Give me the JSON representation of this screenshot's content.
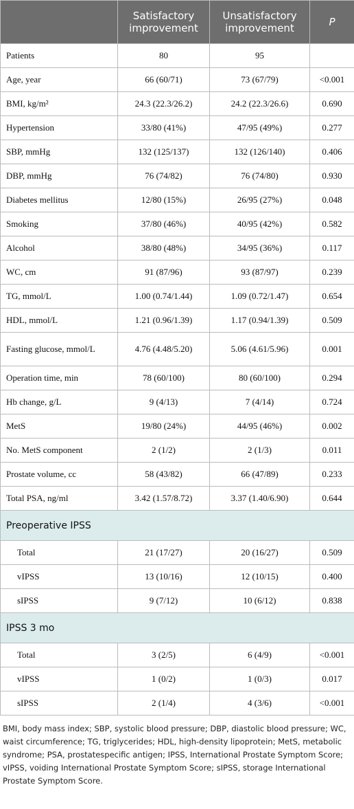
{
  "table": {
    "header": [
      "Satisfactory improvement",
      "Unsatisfactory improvement",
      "P"
    ],
    "rows": [
      [
        "Patients",
        "80",
        "95",
        ""
      ],
      [
        "Age, year",
        "66 (60/71)",
        "73 (67/79)",
        "<0.001"
      ],
      [
        "BMI, kg/m²",
        "24.3 (22.3/26.2)",
        "24.2 (22.3/26.6)",
        "0.690"
      ],
      [
        "Hypertension",
        "33/80 (41%)",
        "47/95 (49%)",
        "0.277"
      ],
      [
        "SBP, mmHg",
        "132 (125/137)",
        "132 (126/140)",
        "0.406"
      ],
      [
        "DBP, mmHg",
        "76 (74/82)",
        "76 (74/80)",
        "0.930"
      ],
      [
        "Diabetes mellitus",
        "12/80 (15%)",
        "26/95 (27%)",
        "0.048"
      ],
      [
        "Smoking",
        "37/80 (46%)",
        "40/95 (42%)",
        "0.582"
      ],
      [
        "Alcohol",
        "38/80 (48%)",
        "34/95 (36%)",
        "0.117"
      ],
      [
        "WC, cm",
        "91 (87/96)",
        "93 (87/97)",
        "0.239"
      ],
      [
        "TG, mmol/L",
        "1.00 (0.74/1.44)",
        "1.09 (0.72/1.47)",
        "0.654"
      ],
      [
        "HDL, mmol/L",
        "1.21 (0.96/1.39)",
        "1.17 (0.94/1.39)",
        "0.509"
      ],
      [
        "Fasting glucose, mmol/L",
        "4.76 (4.48/5.20)",
        "5.06 (4.61/5.96)",
        "0.001"
      ],
      [
        "Operation time, min",
        "78 (60/100)",
        "80 (60/100)",
        "0.294"
      ],
      [
        "Hb change, g/L",
        "9 (4/13)",
        "7 (4/14)",
        "0.724"
      ],
      [
        "MetS",
        "19/80 (24%)",
        "44/95 (46%)",
        "0.002"
      ],
      [
        "No. MetS component",
        "2 (1/2)",
        "2 (1/3)",
        "0.011"
      ],
      [
        "Prostate volume, cc",
        "58 (43/82)",
        "66 (47/89)",
        "0.233"
      ],
      [
        "Total PSA, ng/ml",
        "3.42 (1.57/8.72)",
        "3.37 (1.40/6.90)",
        "0.644"
      ]
    ],
    "sections": [
      {
        "title": "Preoperative IPSS",
        "rows": [
          [
            "Total",
            "21 (17/27)",
            "20 (16/27)",
            "0.509"
          ],
          [
            "vIPSS",
            "13 (10/16)",
            "12 (10/15)",
            "0.400"
          ],
          [
            "sIPSS",
            "9 (7/12)",
            "10 (6/12)",
            "0.838"
          ]
        ]
      },
      {
        "title": "IPSS 3 mo",
        "rows": [
          [
            "Total",
            "3 (2/5)",
            "6 (4/9)",
            "<0.001"
          ],
          [
            "vIPSS",
            "1 (0/2)",
            "1 (0/3)",
            "0.017"
          ],
          [
            "sIPSS",
            "2 (1/4)",
            "4 (3/6)",
            "<0.001"
          ]
        ]
      }
    ]
  },
  "footnote": "BMI, body mass index; SBP, systolic blood pressure; DBP, diastolic blood pressure; WC, waist circumference; TG, triglycerides; HDL, high-density lipoprotein; MetS, metabolic syndrome; PSA, prostatespecific antigen; IPSS, International Prostate Symptom Score; vIPSS, voiding International Prostate Symptom Score; sIPSS, storage International Prostate Symptom Score."
}
